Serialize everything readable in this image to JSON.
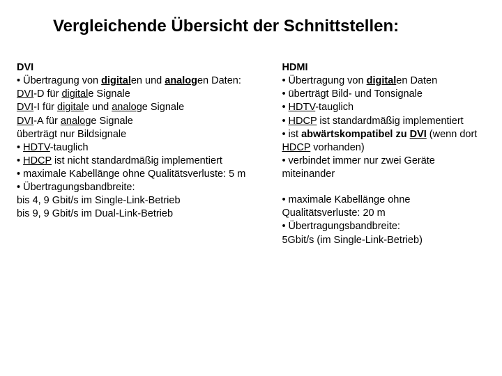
{
  "title": "Vergleichende Übersicht der Schnittstellen:",
  "left": {
    "heading": "DVI",
    "lines": [
      {
        "prefix": "• Übertragung von ",
        "u1": "digital",
        "inter1": "en und ",
        "u2": "analog",
        "suffix": "en Daten:"
      },
      {
        "prefix": "",
        "u1": "DVI",
        "inter1": "-D für ",
        "u2": "digital",
        "suffix": "e Signale"
      },
      {
        "prefix": "",
        "u1": "DVI",
        "inter1": "-I für ",
        "u2": "digital",
        "inter2": "e und ",
        "u3": "analog",
        "suffix": "e Signale"
      },
      {
        "prefix": "",
        "u1": "DVI",
        "inter1": "-A für ",
        "u2": "analog",
        "suffix": "e Signale"
      },
      {
        "plain": "überträgt nur Bildsignale"
      },
      {
        "prefix": "• ",
        "u1": "HDTV",
        "suffix": "-tauglich"
      },
      {
        "prefix": "• ",
        "u1": "HDCP",
        "suffix": " ist nicht standardmäßig implementiert"
      },
      {
        "plain": "• maximale Kabellänge ohne Qualitätsverluste: 5 m"
      },
      {
        "plain": "• Übertragungsbandbreite:"
      },
      {
        "plain": "bis 4, 9 Gbit/s im Single-Link-Betrieb"
      },
      {
        "plain": "bis 9, 9 Gbit/s im Dual-Link-Betrieb"
      }
    ]
  },
  "right": {
    "heading": "HDMI",
    "lines": [
      {
        "prefix": "• Übertragung von ",
        "u1": "digital",
        "suffix": "en Daten"
      },
      {
        "plain": "• überträgt Bild- und Tonsignale"
      },
      {
        "prefix": "• ",
        "u1": "HDTV",
        "suffix": "-tauglich"
      },
      {
        "prefix": "• ",
        "u1": "HDCP",
        "suffix": " ist standardmäßig implementiert"
      },
      {
        "prefix": "• ist ",
        "b1": "abwärtskompatibel zu ",
        "bu1": "DVI",
        "inter1": " (wenn dort ",
        "u1": "HDCP",
        "suffix": " vorhanden)"
      },
      {
        "plain": "• verbindet immer nur zwei Geräte miteinander"
      }
    ],
    "group2": [
      {
        "plain": "• maximale Kabellänge ohne Qualitätsverluste:  20 m"
      },
      {
        "plain": "• Übertragungsbandbreite:"
      },
      {
        "plain": "5Gbit/s (im Single-Link-Betrieb)"
      }
    ]
  },
  "style": {
    "background_color": "#ffffff",
    "text_color": "#000000",
    "title_fontsize_pt": 18,
    "body_fontsize_pt": 11,
    "font_family": "Arial"
  }
}
